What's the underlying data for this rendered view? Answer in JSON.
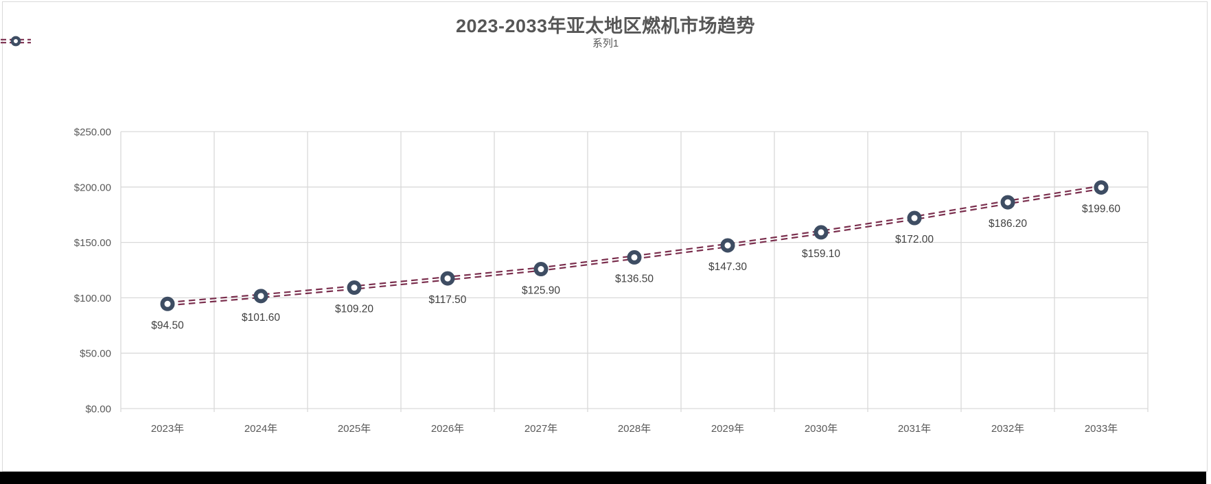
{
  "chart_data": {
    "type": "line",
    "title": "2023-2033年亚太地区燃机市场趋势",
    "legend_position": "top-center",
    "categories": [
      "2023年",
      "2024年",
      "2025年",
      "2026年",
      "2027年",
      "2028年",
      "2029年",
      "2030年",
      "2031年",
      "2032年",
      "2033年"
    ],
    "series": [
      {
        "name": "系列1",
        "values": [
          94.5,
          101.6,
          109.2,
          117.5,
          125.9,
          136.5,
          147.3,
          159.1,
          172.0,
          186.2,
          199.6
        ],
        "data_labels": [
          "$94.50",
          "$101.60",
          "$109.20",
          "$117.50",
          "$125.90",
          "$136.50",
          "$147.30",
          "$159.10",
          "$172.00",
          "$186.20",
          "$199.60"
        ],
        "line_style": "double-dashed",
        "marker": "ring"
      }
    ],
    "ylim": [
      0,
      250
    ],
    "ytick_step": 50,
    "ytick_labels": [
      "$0.00",
      "$50.00",
      "$100.00",
      "$150.00",
      "$200.00",
      "$250.00"
    ],
    "grid": "both",
    "colors": {
      "line": "#7A2E4D",
      "marker": "#3E4D63",
      "grid": "#D9D9D9",
      "axis_text": "#595959",
      "data_label": "#404040",
      "title": "#565656"
    }
  }
}
